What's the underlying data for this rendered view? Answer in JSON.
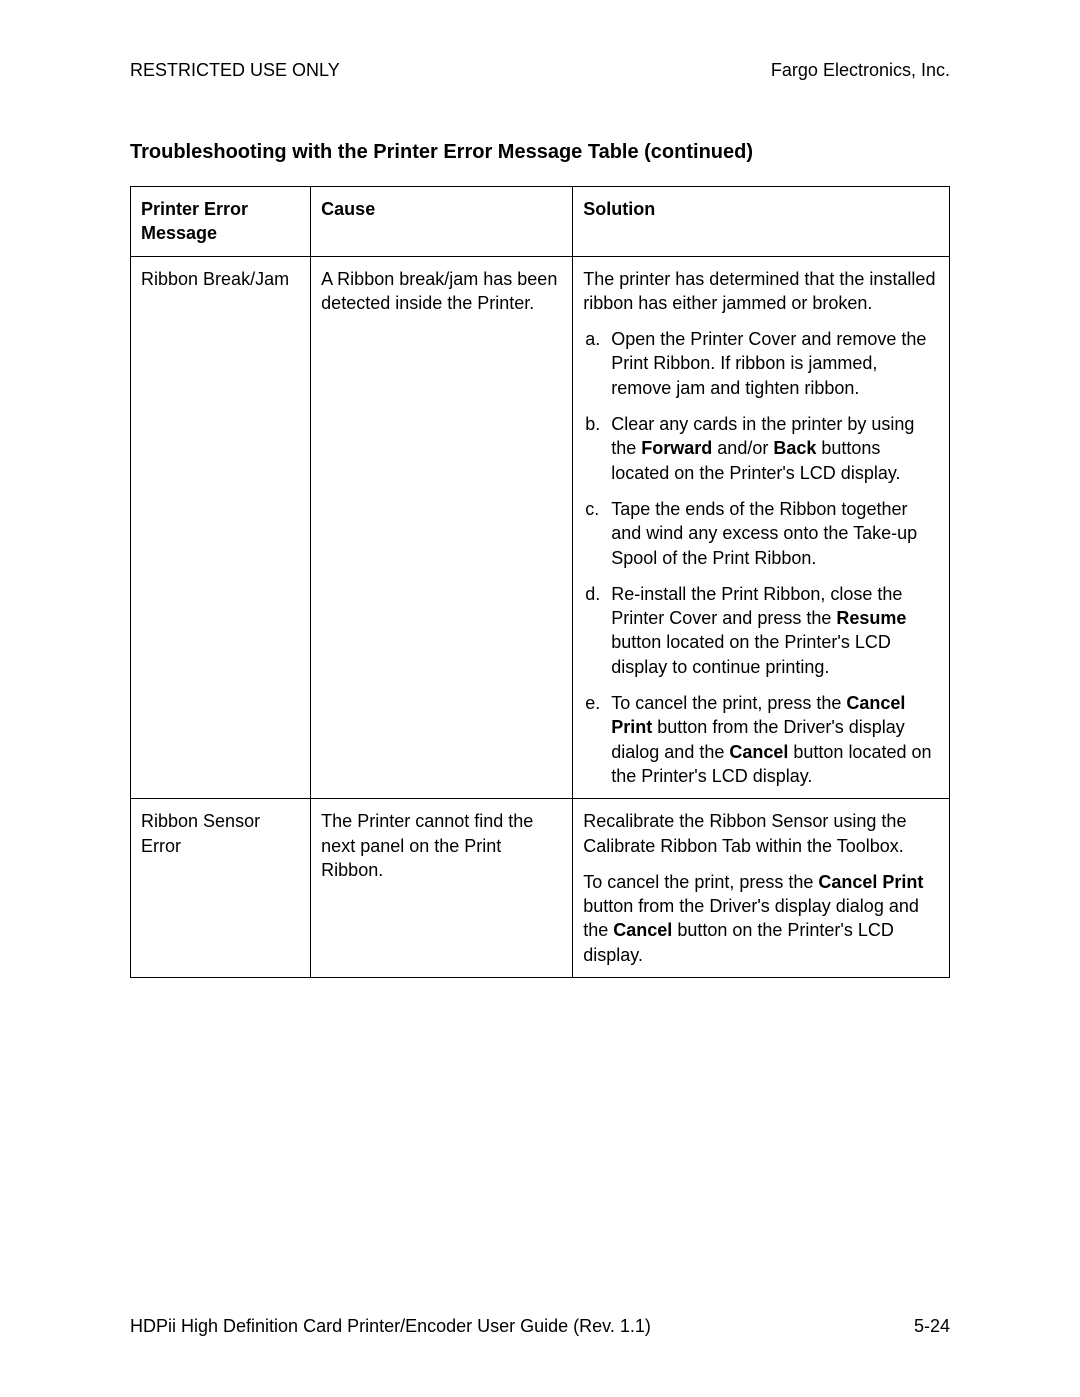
{
  "header": {
    "left": "RESTRICTED USE ONLY",
    "right": "Fargo Electronics, Inc."
  },
  "section_title": "Troubleshooting with the Printer Error Message Table (continued)",
  "table": {
    "columns": [
      "Printer Error Message",
      "Cause",
      "Solution"
    ],
    "rows": [
      {
        "message": "Ribbon Break/Jam",
        "cause": "A Ribbon break/jam has been detected inside the Printer.",
        "solution": {
          "intro": "The printer has determined that the installed ribbon has either jammed or broken.",
          "steps": [
            {
              "marker": "a.",
              "text": "Open the Printer Cover and remove the Print Ribbon. If ribbon is jammed, remove jam and tighten ribbon."
            },
            {
              "marker": "b.",
              "text_segments": [
                {
                  "t": "Clear any cards in the printer by using the "
                },
                {
                  "t": "Forward",
                  "bold": true
                },
                {
                  "t": " and/or "
                },
                {
                  "t": "Back",
                  "bold": true
                },
                {
                  "t": " buttons located on the Printer's LCD display."
                }
              ]
            },
            {
              "marker": "c.",
              "text": "Tape the ends of the Ribbon together and wind any excess onto the Take-up Spool of the Print Ribbon."
            },
            {
              "marker": "d.",
              "text_segments": [
                {
                  "t": "Re-install the Print Ribbon, close the Printer Cover and press the "
                },
                {
                  "t": "Resume",
                  "bold": true
                },
                {
                  "t": " button located on the Printer's LCD display to continue printing."
                }
              ]
            },
            {
              "marker": "e.",
              "text_segments": [
                {
                  "t": "To cancel the print, press the "
                },
                {
                  "t": "Cancel Print",
                  "bold": true
                },
                {
                  "t": " button from the Driver's display dialog and the "
                },
                {
                  "t": "Cancel",
                  "bold": true
                },
                {
                  "t": " button located on the Printer's LCD display."
                }
              ]
            }
          ]
        }
      },
      {
        "message": "Ribbon Sensor Error",
        "cause": "The Printer cannot find the next panel on the Print Ribbon.",
        "solution": {
          "paragraphs": [
            {
              "segments": [
                {
                  "t": "Recalibrate the Ribbon Sensor using the Calibrate Ribbon Tab within the Toolbox."
                }
              ]
            },
            {
              "segments": [
                {
                  "t": "To cancel the print, press the "
                },
                {
                  "t": "Cancel Print",
                  "bold": true
                },
                {
                  "t": " button from the Driver's display dialog and the "
                },
                {
                  "t": "Cancel",
                  "bold": true
                },
                {
                  "t": " button on the Printer's LCD display."
                }
              ]
            }
          ]
        }
      }
    ]
  },
  "footer": {
    "left": "HDPii High Definition Card Printer/Encoder User Guide (Rev. 1.1)",
    "right": "5-24"
  }
}
